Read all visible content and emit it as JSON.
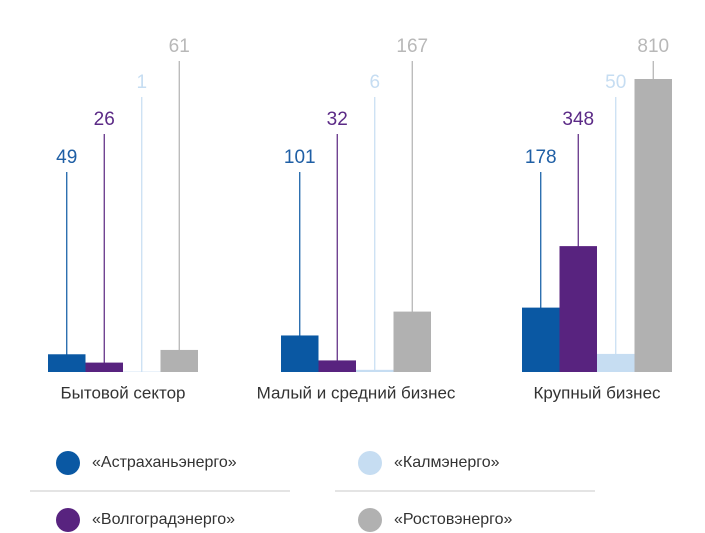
{
  "chart_data": {
    "type": "bar",
    "categories": [
      "Бытовой сектор",
      "Малый и средний бизнес",
      "Крупный бизнес"
    ],
    "series": [
      {
        "name": "«Астраханьэнерго»",
        "color": "#0a58a3",
        "values": [
          49,
          101,
          178
        ]
      },
      {
        "name": "«Волгоградэнерго»",
        "color": "#58237f",
        "values": [
          26,
          32,
          348
        ]
      },
      {
        "name": "«Калмэнерго»",
        "color": "#c6ddf2",
        "values": [
          1,
          6,
          50
        ]
      },
      {
        "name": "«Ростовэнерго»",
        "color": "#b1b1b1",
        "values": [
          61,
          167,
          810
        ]
      }
    ],
    "ylim": [
      0,
      810
    ]
  }
}
